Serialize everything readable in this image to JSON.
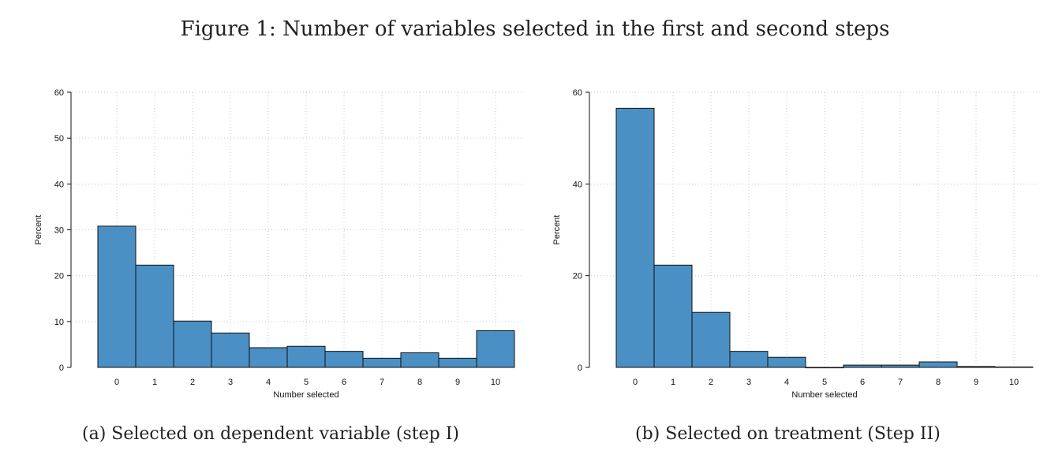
{
  "figure_title": "Figure 1: Number of variables selected in the first and second steps",
  "captions": {
    "a": "(a) Selected on dependent variable (step I)",
    "b": "(b) Selected on treatment (Step II)"
  },
  "colors": {
    "bar_fill": "#4A90C4",
    "bar_stroke": "#111111",
    "grid": "#c8c8c8"
  },
  "chart_data": [
    {
      "type": "bar",
      "title": "",
      "xlabel": "Number selected",
      "ylabel": "Percent",
      "categories": [
        "0",
        "1",
        "2",
        "3",
        "4",
        "5",
        "6",
        "7",
        "8",
        "9",
        "10"
      ],
      "values": [
        30.8,
        22.3,
        10.1,
        7.5,
        4.3,
        4.6,
        3.5,
        2.0,
        3.2,
        2.0,
        8.0
      ],
      "ylim": [
        0,
        60
      ],
      "yticks": [
        0,
        10,
        20,
        30,
        40,
        50,
        60
      ],
      "grid": true
    },
    {
      "type": "bar",
      "title": "",
      "xlabel": "Number selected",
      "ylabel": "Percent",
      "categories": [
        "0",
        "1",
        "2",
        "3",
        "4",
        "5",
        "6",
        "7",
        "8",
        "9",
        "10"
      ],
      "values": [
        56.5,
        22.3,
        12.0,
        3.5,
        2.2,
        0,
        0.5,
        0.5,
        1.2,
        0.2,
        0.1
      ],
      "ylim": [
        0,
        60
      ],
      "yticks": [
        0,
        20,
        40,
        60
      ],
      "grid": true
    }
  ]
}
